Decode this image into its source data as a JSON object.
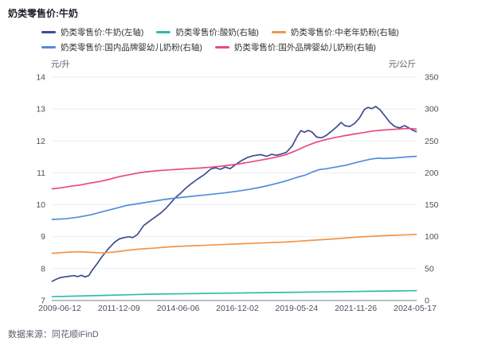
{
  "page": {
    "title": "奶类零售价:牛奶",
    "source": "数据来源：同花顺iFinD"
  },
  "chart_data": {
    "type": "line",
    "title": "奶类零售价:牛奶",
    "grid": true,
    "legend_position": "top",
    "left_axis": {
      "unit": "元/升",
      "range": [
        7,
        14
      ],
      "ticks": [
        "14",
        "13",
        "12",
        "11",
        "10",
        "9",
        "8",
        "7"
      ]
    },
    "right_axis": {
      "unit": "元/公斤",
      "range": [
        0,
        350
      ],
      "ticks": [
        "350",
        "300",
        "250",
        "200",
        "150",
        "100",
        "50",
        "0"
      ]
    },
    "x_axis": {
      "labels": [
        "2009-06-12",
        "2011-12-09",
        "2014-06-06",
        "2016-12-02",
        "2019-05-24",
        "2021-11-26",
        "2024-05-17"
      ],
      "range_years": [
        2009.45,
        2024.38
      ]
    },
    "series": [
      {
        "name": "奶类零售价:牛奶(左轴)",
        "axis": "left",
        "color": "#3E4C92",
        "points": [
          [
            2009.45,
            7.6
          ],
          [
            2009.6,
            7.66
          ],
          [
            2009.75,
            7.71
          ],
          [
            2009.95,
            7.74
          ],
          [
            2010.15,
            7.76
          ],
          [
            2010.35,
            7.78
          ],
          [
            2010.5,
            7.75
          ],
          [
            2010.65,
            7.79
          ],
          [
            2010.8,
            7.74
          ],
          [
            2010.95,
            7.78
          ],
          [
            2011.1,
            7.96
          ],
          [
            2011.3,
            8.16
          ],
          [
            2011.5,
            8.38
          ],
          [
            2011.75,
            8.62
          ],
          [
            2012.0,
            8.82
          ],
          [
            2012.2,
            8.93
          ],
          [
            2012.4,
            8.97
          ],
          [
            2012.6,
            9.0
          ],
          [
            2012.75,
            8.97
          ],
          [
            2012.95,
            9.07
          ],
          [
            2013.2,
            9.35
          ],
          [
            2013.5,
            9.52
          ],
          [
            2013.7,
            9.63
          ],
          [
            2013.9,
            9.74
          ],
          [
            2014.1,
            9.88
          ],
          [
            2014.3,
            10.05
          ],
          [
            2014.5,
            10.22
          ],
          [
            2014.7,
            10.35
          ],
          [
            2014.9,
            10.5
          ],
          [
            2015.1,
            10.63
          ],
          [
            2015.4,
            10.8
          ],
          [
            2015.7,
            10.95
          ],
          [
            2015.95,
            11.12
          ],
          [
            2016.15,
            11.16
          ],
          [
            2016.35,
            11.11
          ],
          [
            2016.55,
            11.18
          ],
          [
            2016.75,
            11.13
          ],
          [
            2016.95,
            11.25
          ],
          [
            2017.2,
            11.38
          ],
          [
            2017.45,
            11.48
          ],
          [
            2017.7,
            11.54
          ],
          [
            2018.0,
            11.57
          ],
          [
            2018.25,
            11.52
          ],
          [
            2018.45,
            11.58
          ],
          [
            2018.65,
            11.55
          ],
          [
            2018.85,
            11.59
          ],
          [
            2019.05,
            11.64
          ],
          [
            2019.3,
            11.85
          ],
          [
            2019.5,
            12.15
          ],
          [
            2019.65,
            12.32
          ],
          [
            2019.8,
            12.27
          ],
          [
            2019.95,
            12.33
          ],
          [
            2020.1,
            12.28
          ],
          [
            2020.3,
            12.12
          ],
          [
            2020.5,
            12.1
          ],
          [
            2020.7,
            12.18
          ],
          [
            2020.9,
            12.3
          ],
          [
            2021.1,
            12.43
          ],
          [
            2021.3,
            12.58
          ],
          [
            2021.45,
            12.48
          ],
          [
            2021.65,
            12.45
          ],
          [
            2021.85,
            12.55
          ],
          [
            2022.05,
            12.72
          ],
          [
            2022.25,
            12.98
          ],
          [
            2022.4,
            13.05
          ],
          [
            2022.55,
            13.01
          ],
          [
            2022.72,
            13.08
          ],
          [
            2022.9,
            12.97
          ],
          [
            2023.1,
            12.78
          ],
          [
            2023.3,
            12.58
          ],
          [
            2023.5,
            12.45
          ],
          [
            2023.7,
            12.41
          ],
          [
            2023.9,
            12.48
          ],
          [
            2024.1,
            12.4
          ],
          [
            2024.25,
            12.33
          ],
          [
            2024.38,
            12.29
          ]
        ]
      },
      {
        "name": "奶类零售价:酸奶(右轴)",
        "axis": "right",
        "color": "#2FBDAD",
        "points": [
          [
            2009.45,
            6
          ],
          [
            2010.5,
            7
          ],
          [
            2011.5,
            8
          ],
          [
            2012.5,
            9
          ],
          [
            2013.5,
            10
          ],
          [
            2014.5,
            10.5
          ],
          [
            2015.5,
            11
          ],
          [
            2016.5,
            11.5
          ],
          [
            2017.5,
            12
          ],
          [
            2018.5,
            12.5
          ],
          [
            2019.5,
            13
          ],
          [
            2020.5,
            13.5
          ],
          [
            2021.5,
            14
          ],
          [
            2022.5,
            14.5
          ],
          [
            2023.5,
            15
          ],
          [
            2024.38,
            15.5
          ]
        ]
      },
      {
        "name": "奶类零售价:中老年奶粉(右轴)",
        "axis": "right",
        "color": "#F2954A",
        "points": [
          [
            2009.45,
            74
          ],
          [
            2010.0,
            75.5
          ],
          [
            2010.5,
            76.5
          ],
          [
            2011.0,
            75.5
          ],
          [
            2011.5,
            74.5
          ],
          [
            2012.0,
            76
          ],
          [
            2012.5,
            78.5
          ],
          [
            2013.0,
            80.5
          ],
          [
            2013.6,
            82
          ],
          [
            2014.2,
            84
          ],
          [
            2015.0,
            85.5
          ],
          [
            2016.0,
            87
          ],
          [
            2017.0,
            88.5
          ],
          [
            2018.0,
            90
          ],
          [
            2019.0,
            91.5
          ],
          [
            2020.0,
            94
          ],
          [
            2021.0,
            96.5
          ],
          [
            2022.0,
            99.5
          ],
          [
            2023.0,
            101.5
          ],
          [
            2024.0,
            103
          ],
          [
            2024.38,
            103.5
          ]
        ]
      },
      {
        "name": "奶类零售价:国内品牌婴幼儿奶粉(右轴)",
        "axis": "right",
        "color": "#4E8EDB",
        "points": [
          [
            2009.45,
            127
          ],
          [
            2010.0,
            128
          ],
          [
            2010.5,
            130.5
          ],
          [
            2011.0,
            134
          ],
          [
            2011.5,
            139
          ],
          [
            2012.0,
            144
          ],
          [
            2012.5,
            149
          ],
          [
            2013.0,
            152
          ],
          [
            2013.5,
            155
          ],
          [
            2014.0,
            158
          ],
          [
            2014.5,
            160.5
          ],
          [
            2015.0,
            162.5
          ],
          [
            2015.5,
            164.5
          ],
          [
            2016.0,
            166.5
          ],
          [
            2016.5,
            168.5
          ],
          [
            2017.0,
            171
          ],
          [
            2017.5,
            174
          ],
          [
            2018.0,
            177.5
          ],
          [
            2018.5,
            182
          ],
          [
            2019.0,
            187
          ],
          [
            2019.5,
            193
          ],
          [
            2019.8,
            196
          ],
          [
            2020.1,
            201
          ],
          [
            2020.4,
            205
          ],
          [
            2020.7,
            206.5
          ],
          [
            2021.0,
            208.5
          ],
          [
            2021.5,
            212
          ],
          [
            2022.0,
            217
          ],
          [
            2022.5,
            221.5
          ],
          [
            2022.8,
            223
          ],
          [
            2023.1,
            222.5
          ],
          [
            2023.5,
            223.5
          ],
          [
            2024.0,
            225
          ],
          [
            2024.38,
            226
          ]
        ]
      },
      {
        "name": "奶类零售价:国外品牌婴幼儿奶粉(右轴)",
        "axis": "right",
        "color": "#E94980",
        "points": [
          [
            2009.45,
            175
          ],
          [
            2009.8,
            176.5
          ],
          [
            2010.2,
            179
          ],
          [
            2010.6,
            181
          ],
          [
            2011.0,
            184
          ],
          [
            2011.4,
            186.5
          ],
          [
            2011.8,
            190
          ],
          [
            2012.2,
            194
          ],
          [
            2012.6,
            197
          ],
          [
            2013.0,
            200
          ],
          [
            2013.4,
            202
          ],
          [
            2013.8,
            203.5
          ],
          [
            2014.2,
            204.5
          ],
          [
            2014.6,
            205.5
          ],
          [
            2015.0,
            206.5
          ],
          [
            2015.5,
            207.5
          ],
          [
            2016.0,
            209
          ],
          [
            2016.5,
            211
          ],
          [
            2017.0,
            213.5
          ],
          [
            2017.5,
            216.5
          ],
          [
            2018.0,
            220
          ],
          [
            2018.5,
            223.5
          ],
          [
            2019.0,
            228
          ],
          [
            2019.4,
            234
          ],
          [
            2019.8,
            241
          ],
          [
            2020.2,
            247
          ],
          [
            2020.6,
            251.5
          ],
          [
            2021.0,
            255
          ],
          [
            2021.4,
            258
          ],
          [
            2021.8,
            260.5
          ],
          [
            2022.2,
            263
          ],
          [
            2022.6,
            265.5
          ],
          [
            2023.0,
            267
          ],
          [
            2023.4,
            268
          ],
          [
            2023.8,
            269
          ],
          [
            2024.1,
            269.5
          ],
          [
            2024.38,
            268.5
          ]
        ]
      }
    ],
    "style": {
      "grid_color": "#ECEDF4",
      "axis_line_color": "#B9BEC9",
      "tick_label_color": "#4B5160"
    }
  }
}
